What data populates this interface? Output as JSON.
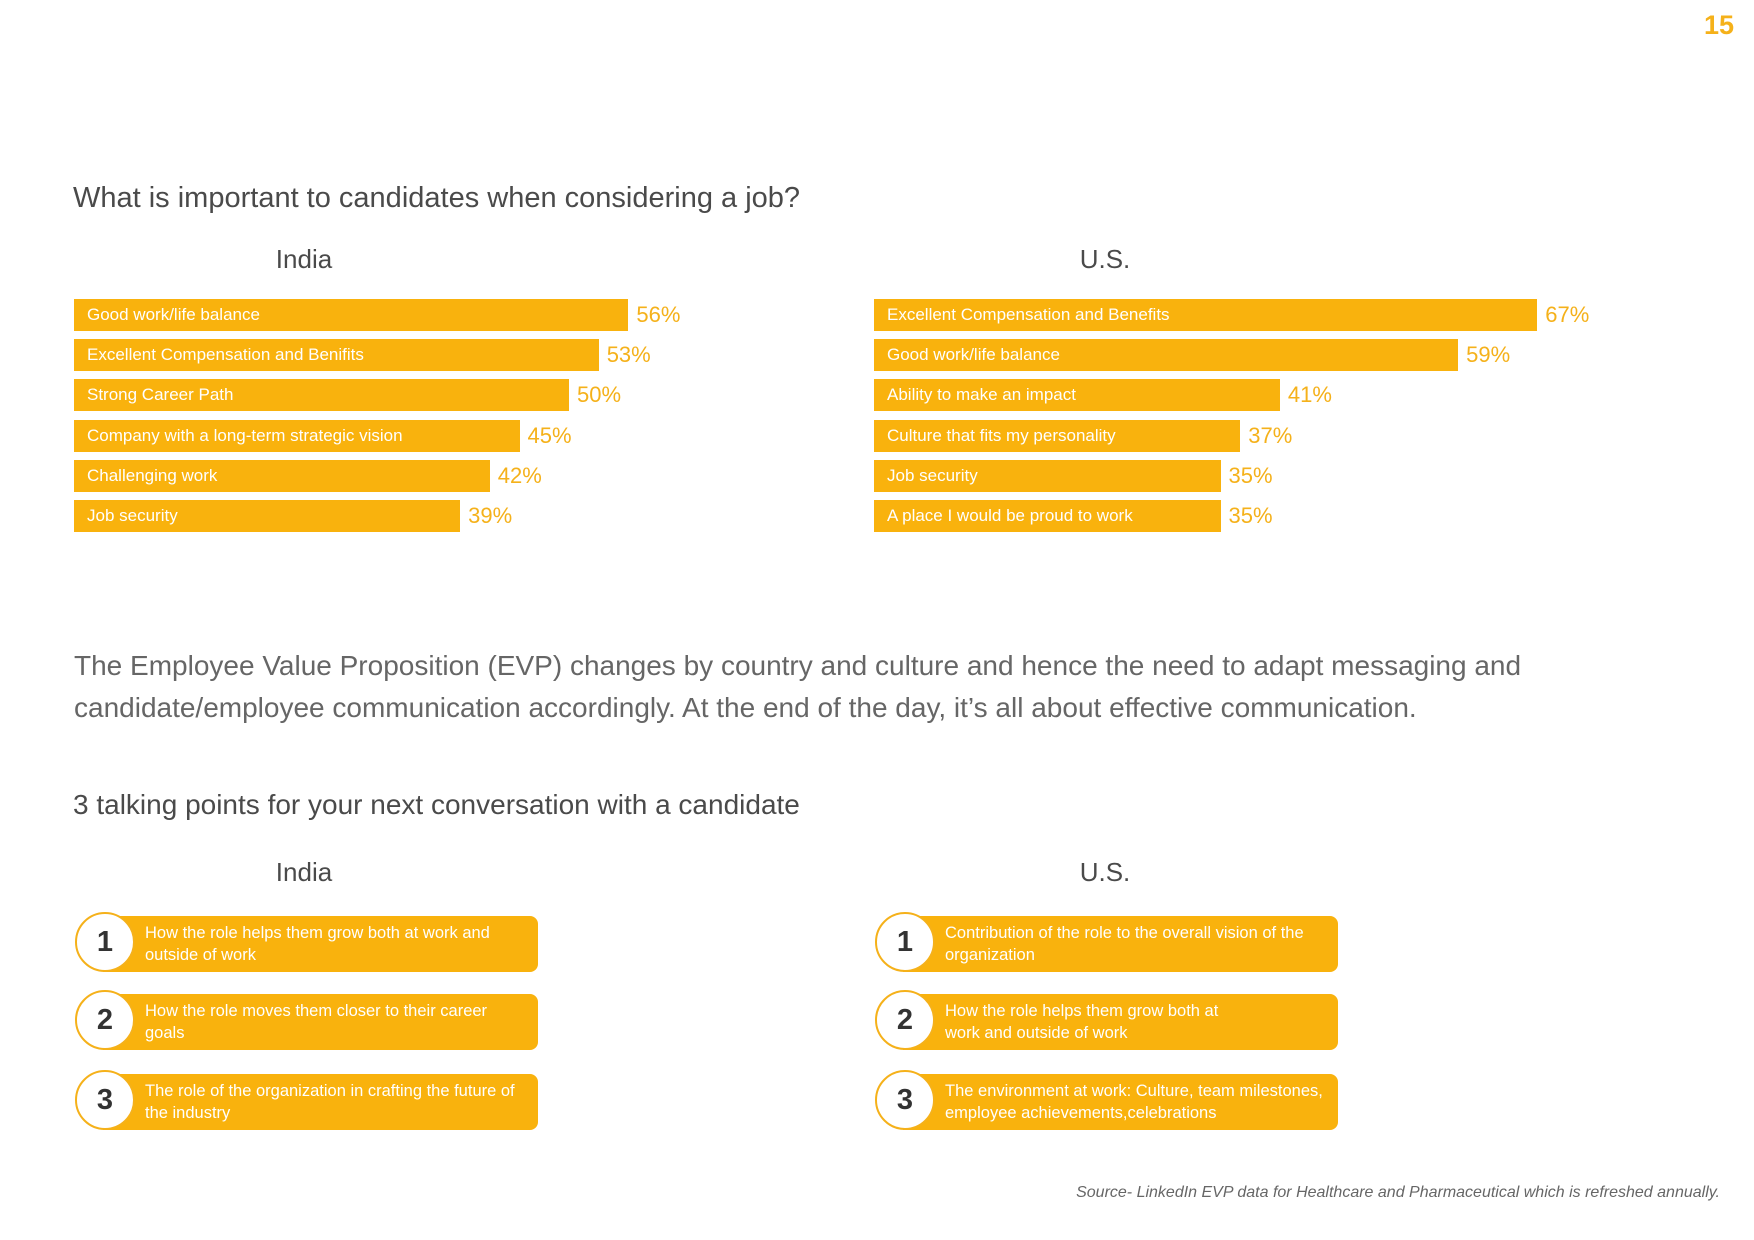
{
  "page_number": "15",
  "section1": {
    "title": "What is important to candidates when considering  a job?",
    "india_label": "India",
    "us_label": "U.S."
  },
  "chart_data": [
    {
      "type": "bar",
      "orientation": "horizontal",
      "title": "India",
      "categories": [
        "Good work/life balance",
        "Excellent Compensation and Benifits",
        "Strong Career Path",
        "Company with a long-term strategic vision",
        "Challenging work",
        "Job security"
      ],
      "values": [
        56,
        53,
        50,
        45,
        42,
        39
      ],
      "value_labels": [
        "56%",
        "53%",
        "50%",
        "45%",
        "42%",
        "39%"
      ],
      "unit": "%",
      "xlim": [
        0,
        100
      ],
      "grid": false,
      "bar_color": "#f9b20d"
    },
    {
      "type": "bar",
      "orientation": "horizontal",
      "title": "U.S.",
      "categories": [
        "Excellent Compensation and Benefits",
        "Good work/life balance",
        "Ability to make an impact",
        "Culture that fits my personality",
        "Job security",
        "A place I would be proud to work"
      ],
      "values": [
        67,
        59,
        41,
        37,
        35,
        35
      ],
      "value_labels": [
        "67%",
        "59%",
        "41%",
        "37%",
        "35%",
        "35%"
      ],
      "unit": "%",
      "xlim": [
        0,
        100
      ],
      "grid": false,
      "bar_color": "#f9b20d"
    }
  ],
  "paragraph": {
    "line1": "The Employee Value Proposition (EVP) changes by country and culture and hence the need to adapt messaging and",
    "line2": "candidate/employee communication accordingly. At the end of the day, it’s all about effective communication."
  },
  "section2": {
    "title": "3 talking points for your next conversation with a candidate",
    "india_label": "India",
    "us_label": "U.S.",
    "india_points": [
      {
        "number": "1",
        "text": "How the role helps them grow both at work and outside of work"
      },
      {
        "number": "2",
        "text": "How the role moves them closer to their career goals"
      },
      {
        "number": "3",
        "text": "The role of the organization in crafting the future of the industry"
      }
    ],
    "us_points": [
      {
        "number": "1",
        "text": "Contribution of the role to the overall vision of the organization"
      },
      {
        "number": "2",
        "text": "How the role helps them grow both at work and outside of work"
      },
      {
        "number": "3",
        "text": "The environment at work: Culture, team milestones, employee achievements,celebrations"
      }
    ]
  },
  "source": "Source-  LinkedIn EVP data for Healthcare and Pharmaceutical which is refreshed annually.",
  "colors": {
    "accent": "#f9b20d",
    "accent_text": "#f5b11a",
    "heading_text": "#4a4a4a",
    "body_text": "#666666"
  }
}
